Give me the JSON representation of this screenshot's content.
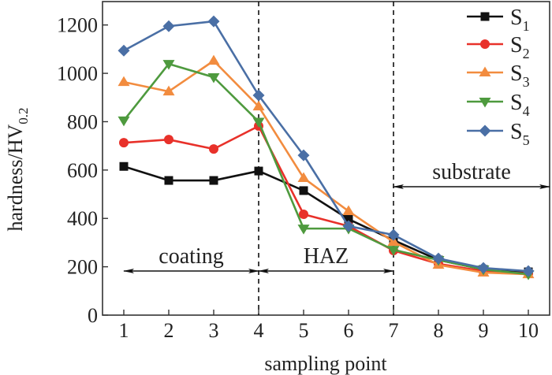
{
  "chart_data": {
    "type": "line",
    "title": "",
    "xlabel": "sampling point",
    "ylabel_main": "hardness/HV",
    "ylabel_sub": "0.2",
    "x": [
      1,
      2,
      3,
      4,
      5,
      6,
      7,
      8,
      9,
      10
    ],
    "xticks": [
      "1",
      "2",
      "3",
      "4",
      "5",
      "6",
      "7",
      "8",
      "9",
      "10"
    ],
    "xlim": [
      0.55,
      10.5
    ],
    "ylim": [
      0,
      1300
    ],
    "yticks": [
      "0",
      "200",
      "400",
      "600",
      "800",
      "1000",
      "1200"
    ],
    "ytick_values": [
      0,
      200,
      400,
      600,
      800,
      1000,
      1200
    ],
    "grid": false,
    "legend_position": "top-right",
    "series": [
      {
        "name": "S",
        "sub": "1",
        "color": "#111111",
        "marker": "square",
        "values": [
          615,
          557,
          557,
          596,
          515,
          397,
          310,
          228,
          189,
          179
        ]
      },
      {
        "name": "S",
        "sub": "2",
        "color": "#e8312a",
        "marker": "circle",
        "values": [
          713,
          726,
          687,
          782,
          417,
          368,
          267,
          212,
          182,
          172
        ]
      },
      {
        "name": "S",
        "sub": "3",
        "color": "#f28c3f",
        "marker": "triangle-up",
        "values": [
          964,
          925,
          1052,
          863,
          567,
          430,
          303,
          208,
          176,
          169
        ]
      },
      {
        "name": "S",
        "sub": "4",
        "color": "#4e9a3e",
        "marker": "triangle-down",
        "values": [
          805,
          1039,
          984,
          800,
          358,
          358,
          270,
          228,
          189,
          169
        ]
      },
      {
        "name": "S",
        "sub": "5",
        "color": "#4a6fa5",
        "marker": "diamond",
        "values": [
          1094,
          1195,
          1215,
          909,
          661,
          368,
          332,
          234,
          195,
          182
        ]
      }
    ],
    "boundaries": [
      4,
      7
    ],
    "regions": [
      {
        "label": "coating",
        "from": 1,
        "to": 4,
        "y": 195
      },
      {
        "label": "HAZ",
        "from": 4,
        "to": 7,
        "y": 195
      },
      {
        "label": "substrate",
        "from": 7,
        "to": 10.5,
        "y": 535
      }
    ]
  }
}
